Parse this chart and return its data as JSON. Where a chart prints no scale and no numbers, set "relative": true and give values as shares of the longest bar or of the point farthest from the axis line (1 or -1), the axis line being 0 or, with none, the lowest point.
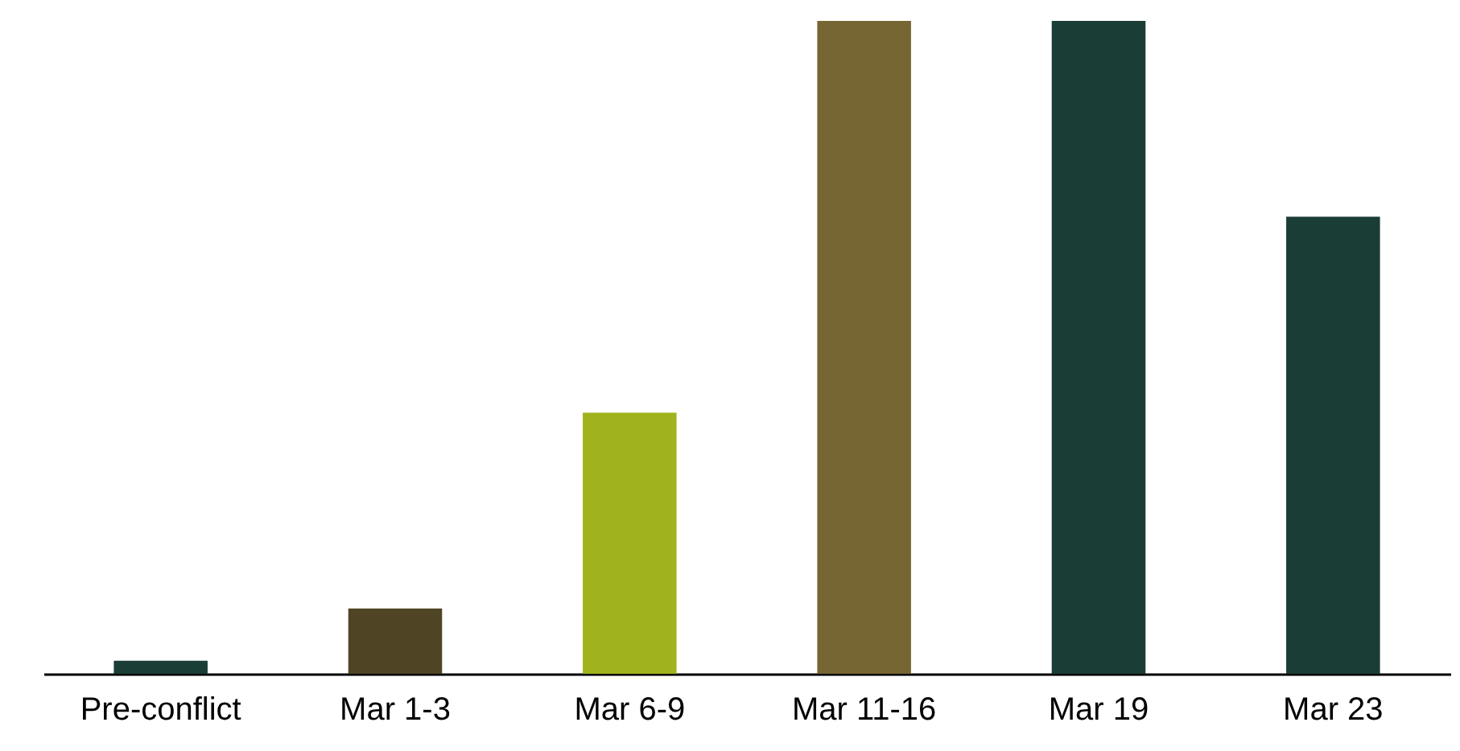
{
  "chart_data": {
    "type": "bar",
    "relative": true,
    "categories": [
      "Pre-conflict",
      "Mar 1-3",
      "Mar 6-9",
      "Mar 11-16",
      "Mar 19",
      "Mar 23"
    ],
    "values": [
      0.02,
      0.1,
      0.4,
      1,
      1,
      0.7
    ],
    "colors": [
      "#1a3d36",
      "#4f4424",
      "#a0b31e",
      "#766633",
      "#1a3d36",
      "#1a3d36"
    ],
    "orientation": "vertical"
  }
}
